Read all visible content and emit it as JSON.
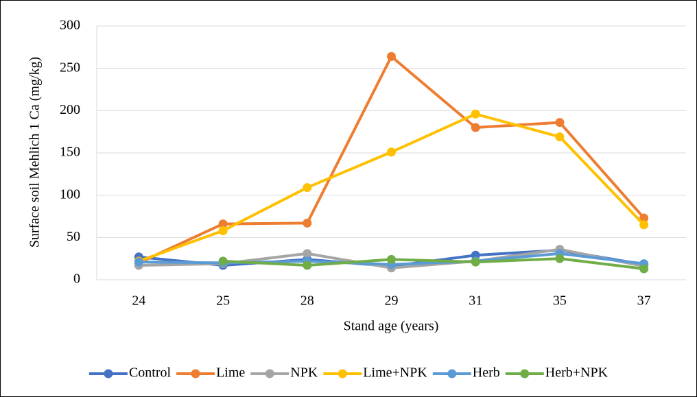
{
  "chart_data": {
    "type": "line",
    "y_label": "Surface soil Mehlich 1 Ca (mg/kg)",
    "x_label": "Stand age (years)",
    "categories": [
      "24",
      "25",
      "28",
      "29",
      "31",
      "35",
      "37"
    ],
    "series": [
      {
        "name": "Control",
        "color": "#4472c4",
        "values": [
          27,
          17,
          24,
          16,
          29,
          35,
          18
        ]
      },
      {
        "name": "Lime",
        "color": "#ed7d31",
        "values": [
          20,
          66,
          67,
          264,
          180,
          186,
          73
        ]
      },
      {
        "name": "NPK",
        "color": "#a5a5a5",
        "values": [
          17,
          19,
          31,
          14,
          22,
          36,
          16
        ]
      },
      {
        "name": "Lime+NPK",
        "color": "#ffc000",
        "values": [
          22,
          58,
          109,
          151,
          196,
          169,
          65
        ]
      },
      {
        "name": "Herb",
        "color": "#5b9bd5",
        "values": [
          21,
          20,
          22,
          18,
          22,
          31,
          19
        ]
      },
      {
        "name": "Herb+NPK",
        "color": "#70ad47",
        "values": [
          null,
          22,
          17,
          24,
          21,
          25,
          13
        ]
      }
    ],
    "ylim": [
      0,
      300
    ],
    "yticks": [
      0,
      50,
      100,
      150,
      200,
      250,
      300
    ],
    "grid": true,
    "legend": "bottom"
  }
}
